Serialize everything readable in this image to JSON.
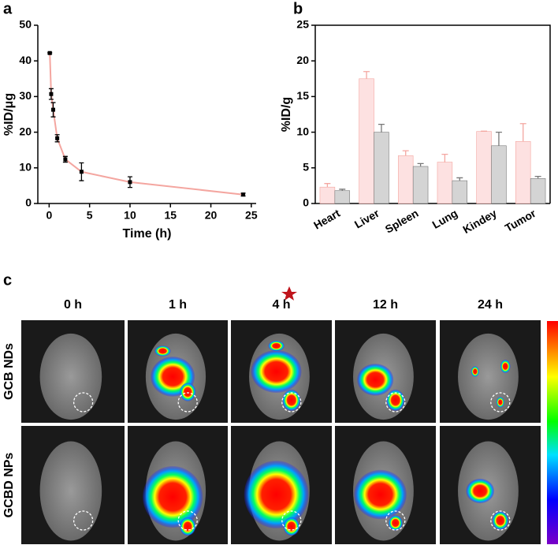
{
  "chart_data": [
    {
      "type": "line",
      "label": "a",
      "xlabel": "Time (h)",
      "ylabel": "%ID/μg",
      "x": [
        0.08,
        0.25,
        0.5,
        1,
        2,
        4,
        10,
        24
      ],
      "values": [
        42.2,
        30.7,
        26.3,
        18.3,
        12.4,
        8.9,
        6.0,
        2.5
      ],
      "errors": [
        0.2,
        1.5,
        2.0,
        1.0,
        0.8,
        2.5,
        1.5,
        0.4
      ],
      "color": "#f4a6a0",
      "xlim": [
        -1.4,
        25.6
      ],
      "xticks": [
        0,
        5,
        10,
        15,
        20,
        25
      ],
      "ylim": [
        0,
        50
      ],
      "yticks": [
        0,
        10,
        20,
        30,
        40,
        50
      ]
    },
    {
      "type": "bar",
      "label": "b",
      "ylabel": "%ID/g",
      "categories": [
        "Heart",
        "Liver",
        "Spleen",
        "Lung",
        "Kindey",
        "Tumor"
      ],
      "series": [
        {
          "color": "#fde1e1",
          "values": [
            2.3,
            17.5,
            6.7,
            5.8,
            10.1,
            8.7
          ],
          "errors": [
            0.5,
            1.0,
            0.7,
            1.1,
            0.05,
            2.5
          ]
        },
        {
          "color": "#d4d4d4",
          "values": [
            1.8,
            10.0,
            5.2,
            3.2,
            8.1,
            3.5
          ],
          "errors": [
            0.2,
            1.1,
            0.4,
            0.4,
            1.9,
            0.3
          ]
        }
      ],
      "ylim": [
        0,
        25
      ],
      "yticks": [
        0,
        5,
        10,
        15,
        20,
        25
      ]
    }
  ],
  "panel_c": {
    "label": "c",
    "columns": [
      "0 h",
      "1 h",
      "4 h",
      "12 h",
      "24 h"
    ],
    "rows": [
      "GCB NDs",
      "GCBD NPs"
    ]
  }
}
